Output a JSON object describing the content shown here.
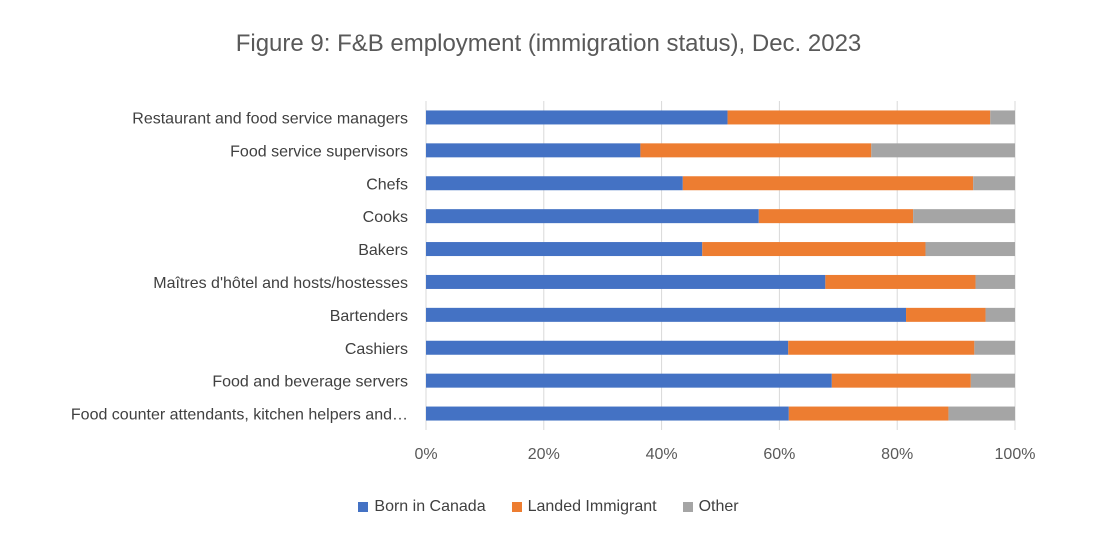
{
  "chart_data": {
    "type": "bar",
    "orientation": "horizontal",
    "stacked": "100%",
    "title": "Figure 9: F&B employment (immigration status), Dec. 2023",
    "categories": [
      "Restaurant and food service managers",
      "Food service supervisors",
      "Chefs",
      "Cooks",
      "Bakers",
      "Maîtres d'hôtel and hosts/hostesses",
      "Bartenders",
      "Cashiers",
      "Food and beverage servers",
      "Food counter attendants, kitchen helpers and…"
    ],
    "series": [
      {
        "name": "Born in Canada",
        "color": "#4472C4",
        "values": [
          51.2,
          36.4,
          43.6,
          56.5,
          46.9,
          67.8,
          81.5,
          61.5,
          68.9,
          61.6
        ]
      },
      {
        "name": "Landed Immigrant",
        "color": "#ED7D31",
        "values": [
          44.6,
          39.2,
          49.3,
          26.2,
          37.9,
          25.5,
          13.5,
          31.6,
          23.6,
          27.1
        ]
      },
      {
        "name": "Other",
        "color": "#A5A5A5",
        "values": [
          4.2,
          24.4,
          7.1,
          17.3,
          15.2,
          6.7,
          5.0,
          6.9,
          7.5,
          11.3
        ]
      }
    ],
    "xlim": [
      0,
      100
    ],
    "x_ticks": [
      "0%",
      "20%",
      "40%",
      "60%",
      "80%",
      "100%"
    ],
    "grid": true,
    "legend_position": "bottom"
  }
}
